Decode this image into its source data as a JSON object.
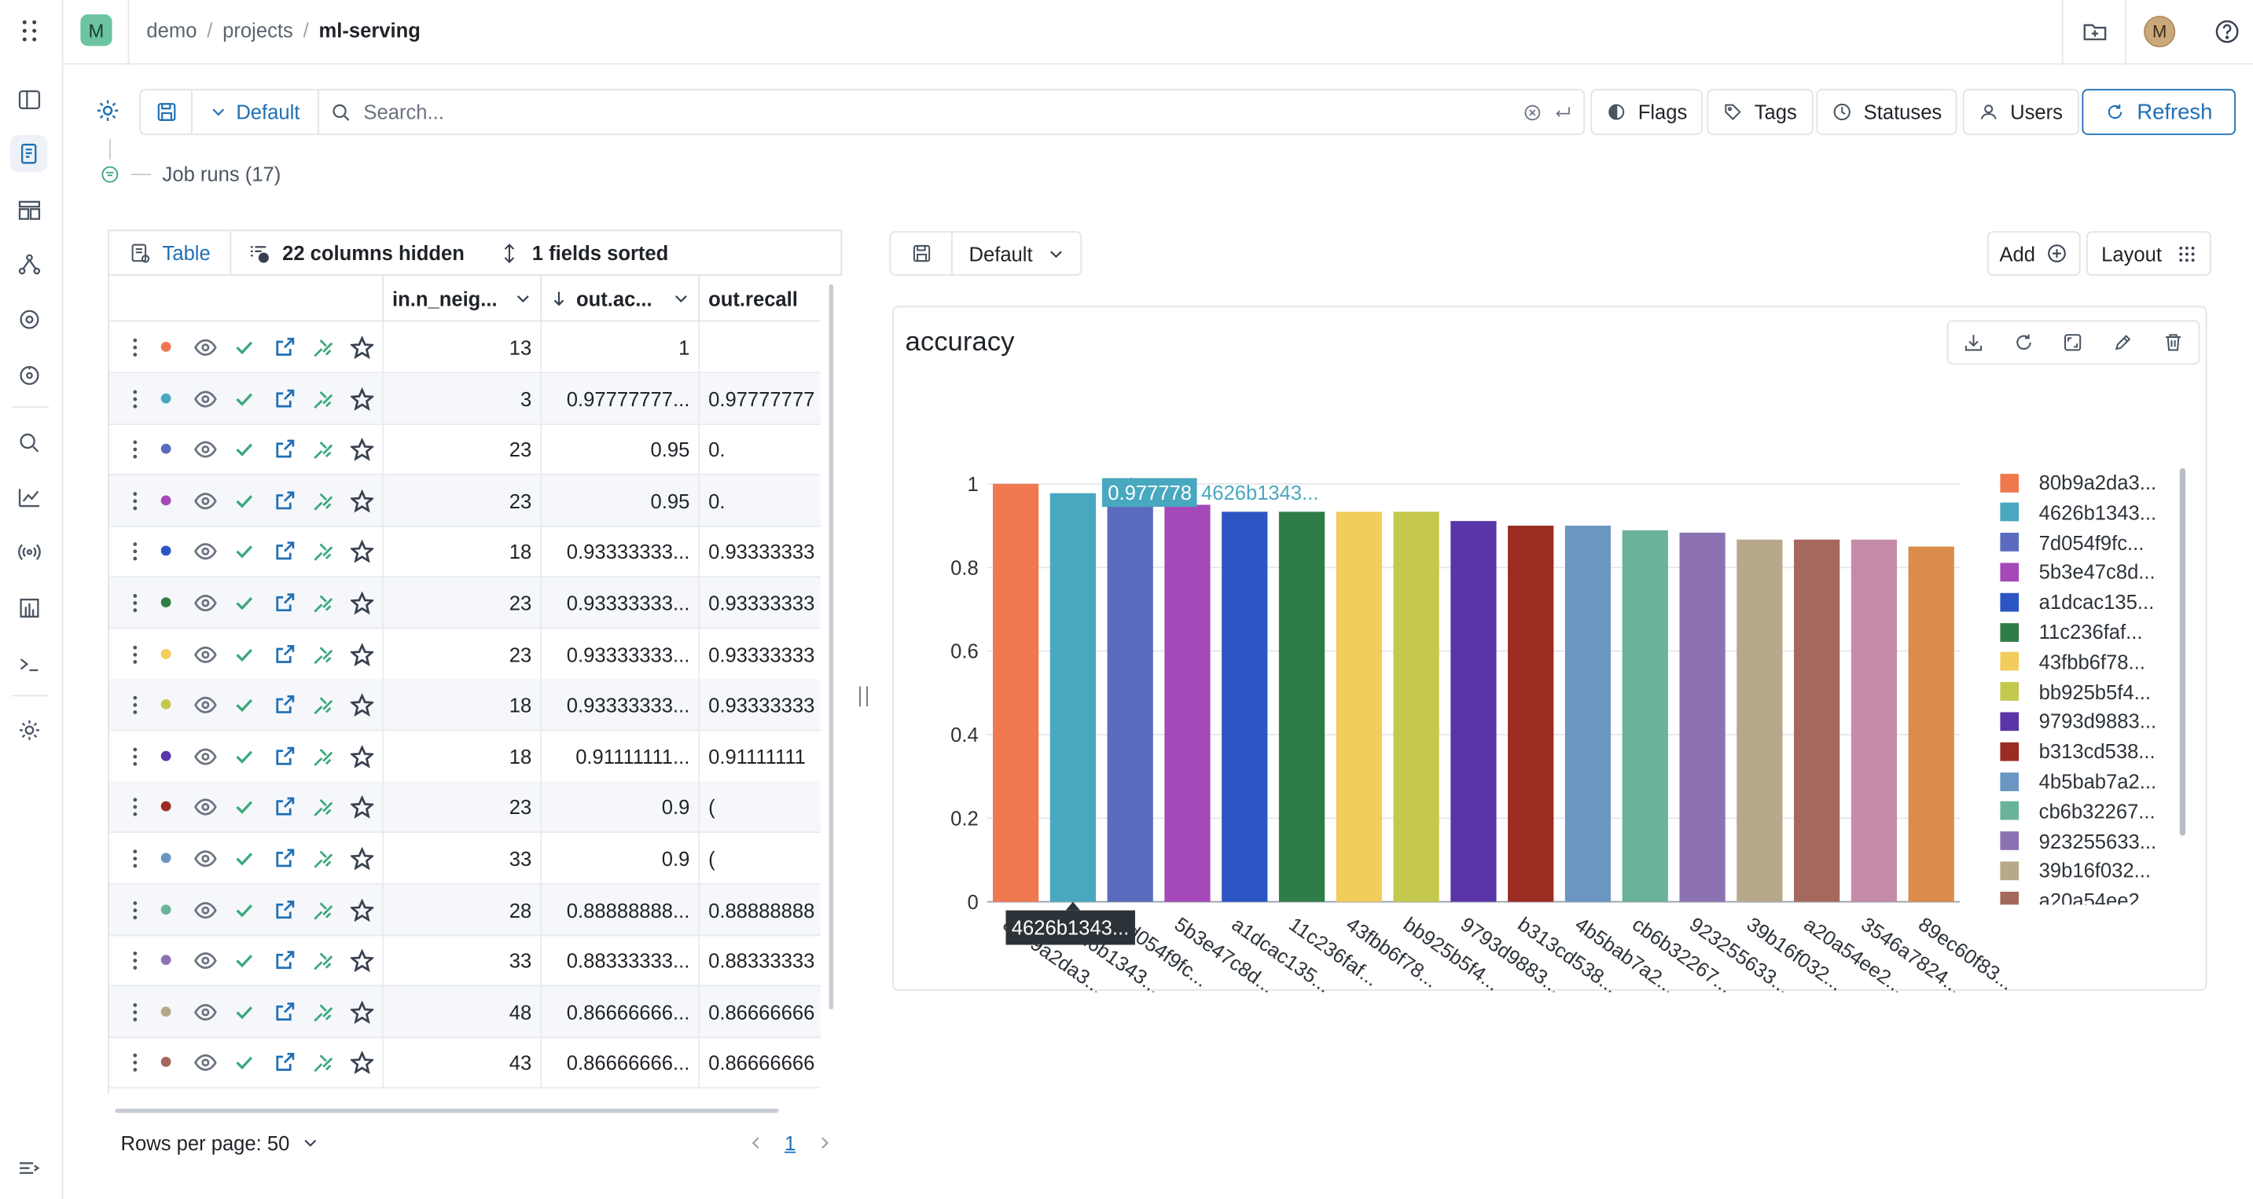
{
  "topbar": {
    "workspace_initial": "M",
    "breadcrumb": [
      "demo",
      "projects",
      "ml-serving"
    ],
    "user_initial": "M"
  },
  "toolbar": {
    "view_label": "Default",
    "search_placeholder": "Search...",
    "flags_label": "Flags",
    "tags_label": "Tags",
    "statuses_label": "Statuses",
    "users_label": "Users",
    "refresh_label": "Refresh"
  },
  "job_runs_label": "Job runs (17)",
  "table": {
    "tab_label": "Table",
    "hidden_label": "22 columns hidden",
    "sorted_label": "1 fields sorted",
    "columns": [
      "in.n_neig...",
      "out.ac...",
      "out.recall"
    ],
    "rows": [
      {
        "color": "#f0784e",
        "n": "13",
        "acc": "1",
        "recall": ""
      },
      {
        "color": "#48a8bf",
        "n": "3",
        "acc": "0.97777777...",
        "recall": "0.97777777"
      },
      {
        "color": "#5b6bbd",
        "n": "23",
        "acc": "0.95",
        "recall": "0."
      },
      {
        "color": "#a548b8",
        "n": "23",
        "acc": "0.95",
        "recall": "0."
      },
      {
        "color": "#2c55c4",
        "n": "18",
        "acc": "0.93333333...",
        "recall": "0.93333333"
      },
      {
        "color": "#2f7d46",
        "n": "23",
        "acc": "0.93333333...",
        "recall": "0.93333333"
      },
      {
        "color": "#f2cd5c",
        "n": "23",
        "acc": "0.93333333...",
        "recall": "0.93333333"
      },
      {
        "color": "#c4c94e",
        "n": "18",
        "acc": "0.93333333...",
        "recall": "0.93333333"
      },
      {
        "color": "#5a35a8",
        "n": "18",
        "acc": "0.91111111...",
        "recall": "0.91111111"
      },
      {
        "color": "#9a2c22",
        "n": "23",
        "acc": "0.9",
        "recall": "("
      },
      {
        "color": "#6b96c2",
        "n": "33",
        "acc": "0.9",
        "recall": "("
      },
      {
        "color": "#6ab39a",
        "n": "28",
        "acc": "0.88888888...",
        "recall": "0.88888888"
      },
      {
        "color": "#8c72b3",
        "n": "33",
        "acc": "0.88333333...",
        "recall": "0.88333333"
      },
      {
        "color": "#b8a88a",
        "n": "48",
        "acc": "0.86666666...",
        "recall": "0.86666666"
      },
      {
        "color": "#a5685c",
        "n": "43",
        "acc": "0.86666666...",
        "recall": "0.86666666"
      }
    ],
    "rows_per_page_label": "Rows per page: 50",
    "page": "1"
  },
  "chart_panel": {
    "view_label": "Default",
    "add_label": "Add",
    "layout_label": "Layout",
    "title": "accuracy"
  },
  "chart_data": {
    "type": "bar",
    "title": "accuracy",
    "xlabel": "",
    "ylabel": "",
    "ylim": [
      0,
      1
    ],
    "yticks": [
      "0",
      "0.2",
      "0.4",
      "0.6",
      "0.8",
      "1"
    ],
    "categories": [
      "80b9a2da3...",
      "4626b1343...",
      "7d054f9fc...",
      "5b3e47c8d...",
      "a1dcac135...",
      "11c236faf...",
      "43fbb6f78...",
      "bb925b5f4...",
      "9793d9883...",
      "b313cd538...",
      "4b5bab7a2...",
      "cb6b32267...",
      "923255633...",
      "39b16f032...",
      "a20a54ee2...",
      "3546a7824...",
      "89ec60f83..."
    ],
    "values": [
      1.0,
      0.977778,
      0.95,
      0.95,
      0.9333,
      0.9333,
      0.9333,
      0.9333,
      0.9111,
      0.9,
      0.9,
      0.8889,
      0.8833,
      0.8667,
      0.8667,
      0.8667,
      0.85
    ],
    "colors": [
      "#f0784e",
      "#48a8bf",
      "#5b6bbd",
      "#a548b8",
      "#2c55c4",
      "#2f7d46",
      "#f2cd5c",
      "#c4c94e",
      "#5a35a8",
      "#9a2c22",
      "#6b96c2",
      "#6ab39a",
      "#8c72b3",
      "#b8a88a",
      "#a5685c",
      "#c48ca8",
      "#d98c4c"
    ],
    "x_tick_labels": [
      "80b9a2da3...",
      "4626b1343...",
      "7d054f9fc...",
      "5b3e47c8d...",
      "a1dcac135...",
      "11c236faf...",
      "43fbb6f78...",
      "bb925b5f4...",
      "9793d9883...",
      "b313cd538...",
      "4b5bab7a2...",
      "cb6b32267...",
      "923255633...",
      "39b16f032...",
      "a20a54ee2...",
      "3546a7824...",
      "89ec60f83..."
    ],
    "legend": [
      "80b9a2da3...",
      "4626b1343...",
      "7d054f9fc...",
      "5b3e47c8d...",
      "a1dcac135...",
      "11c236faf...",
      "43fbb6f78...",
      "bb925b5f4...",
      "9793d9883...",
      "b313cd538...",
      "4b5bab7a2...",
      "cb6b32267...",
      "923255633...",
      "39b16f032...",
      "a20a54ee2..."
    ],
    "legend_position": "right",
    "tooltip_value": "0.977778",
    "tooltip_label": "4626b1343...",
    "x_hover_label": "4626b1343..."
  }
}
